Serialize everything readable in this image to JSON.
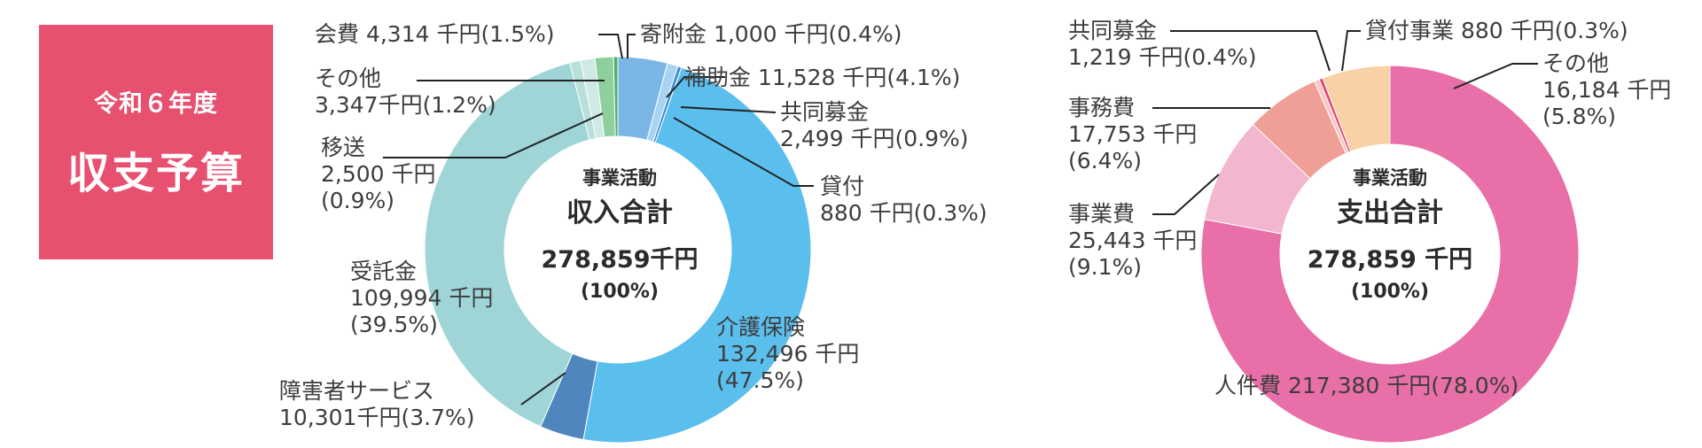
{
  "title": {
    "line1": "令和６年度",
    "line2": "収支予算"
  },
  "colors": {
    "title_bg": "#e7506f"
  },
  "chart_data": [
    {
      "type": "pie",
      "variant": "donut",
      "center": {
        "line1": "事業活動",
        "line2": "収入合計",
        "line3": "278,859千円",
        "line4": "(100%)"
      },
      "slices": [
        {
          "label": "補助金",
          "value": 11528,
          "percent": 4.1,
          "lines": [
            "補助金 11,528 千円(4.1%)"
          ],
          "color": "#7ab6e6"
        },
        {
          "label": "共同募金",
          "value": 2499,
          "percent": 0.9,
          "lines": [
            "共同募金",
            "2,499 千円(0.9%)"
          ],
          "color": "#a8d3f2"
        },
        {
          "label": "貸付",
          "value": 880,
          "percent": 0.3,
          "lines": [
            "貸付",
            "880 千円(0.3%)"
          ],
          "color": "#3f8fcf"
        },
        {
          "label": "介護保険",
          "value": 132496,
          "percent": 47.5,
          "lines": [
            "介護保険",
            "132,496 千円",
            "(47.5%)"
          ],
          "color": "#5bbfee"
        },
        {
          "label": "障害者サービス",
          "value": 10301,
          "percent": 3.7,
          "lines": [
            "障害者サービス",
            "10,301千円(3.7%)"
          ],
          "color": "#4f86be"
        },
        {
          "label": "受託金",
          "value": 109994,
          "percent": 39.5,
          "lines": [
            "受託金",
            "109,994 千円",
            "(39.5%)"
          ],
          "color": "#9fd5d7"
        },
        {
          "label": "移送",
          "value": 2500,
          "percent": 0.9,
          "lines": [
            "移送",
            "2,500 千円",
            "(0.9%)"
          ],
          "color": "#b7e0db"
        },
        {
          "label": "その他",
          "value": 3347,
          "percent": 1.2,
          "lines": [
            "その他",
            "3,347千円(1.2%)"
          ],
          "color": "#cfe9e5"
        },
        {
          "label": "会費",
          "value": 4314,
          "percent": 1.5,
          "lines": [
            "会費 4,314 千円(1.5%)"
          ],
          "color": "#8fcf9e"
        },
        {
          "label": "寄附金",
          "value": 1000,
          "percent": 0.4,
          "lines": [
            "寄附金 1,000 千円(0.4%)"
          ],
          "color": "#4fae6a"
        }
      ]
    },
    {
      "type": "pie",
      "variant": "donut",
      "center": {
        "line1": "事業活動",
        "line2": "支出合計",
        "line3": "278,859 千円",
        "line4": "(100%)"
      },
      "slices": [
        {
          "label": "人件費",
          "value": 217380,
          "percent": 78.0,
          "lines": [
            "人件費 217,380 千円(78.0%)"
          ],
          "color": "#e96fa8"
        },
        {
          "label": "事業費",
          "value": 25443,
          "percent": 9.1,
          "lines": [
            "事業費",
            "25,443 千円",
            "(9.1%)"
          ],
          "color": "#f2b6cf"
        },
        {
          "label": "事務費",
          "value": 17753,
          "percent": 6.4,
          "lines": [
            "事務費",
            "17,753 千円",
            "(6.4%)"
          ],
          "color": "#ef9f95"
        },
        {
          "label": "共同募金",
          "value": 1219,
          "percent": 0.4,
          "lines": [
            "共同募金",
            "1,219 千円(0.4%)"
          ],
          "color": "#f7c6c6"
        },
        {
          "label": "貸付事業",
          "value": 880,
          "percent": 0.3,
          "lines": [
            "貸付事業 880 千円(0.3%)"
          ],
          "color": "#e5456f"
        },
        {
          "label": "その他",
          "value": 16184,
          "percent": 5.8,
          "lines": [
            "その他",
            "16,184 千円",
            "(5.8%)"
          ],
          "color": "#f8d2a6"
        }
      ]
    }
  ]
}
